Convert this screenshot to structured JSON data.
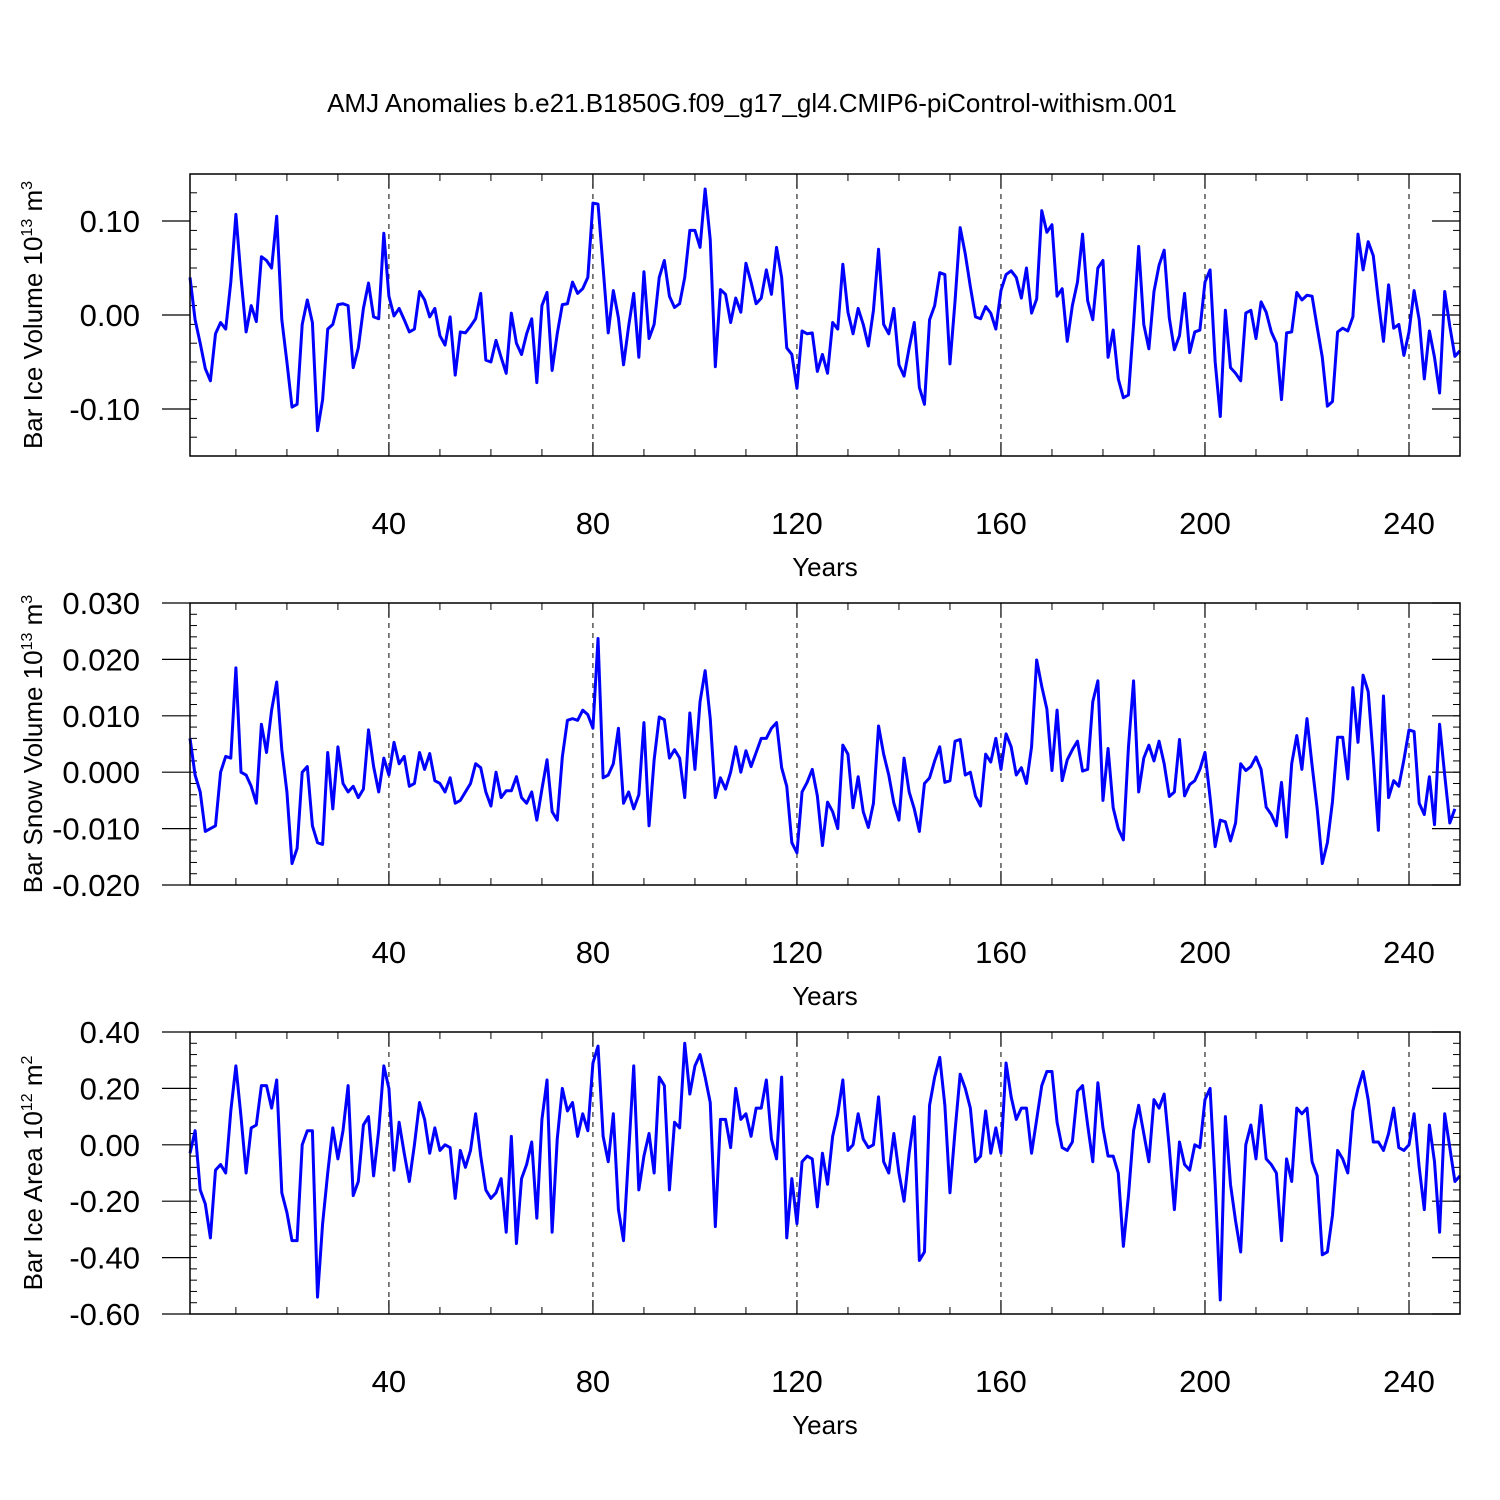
{
  "title": "AMJ Anomalies b.e21.B1850G.f09_g17_gl4.CMIP6-piControl-withism.001",
  "line_color": "#0000ff",
  "chart_data": [
    {
      "type": "line",
      "ylabel_main": "Bar Ice Volume 10",
      "ylabel_exp": "13",
      "ylabel_unit": " m",
      "ylabel_unit_exp": "3",
      "xlabel": "Years",
      "xlim": [
        1,
        250
      ],
      "ylim": [
        -0.15,
        0.15
      ],
      "x_ticks": [
        40,
        80,
        120,
        160,
        200,
        240
      ],
      "x_tick_labels": [
        "40",
        "80",
        "120",
        "160",
        "200",
        "240"
      ],
      "y_ticks": [
        -0.1,
        0.0,
        0.1
      ],
      "y_tick_labels": [
        "-0.10",
        "0.00",
        "0.10"
      ],
      "grid": "dashed vertical at major x ticks",
      "series": [
        {
          "values": [
            0.04,
            -0.005,
            -0.03,
            -0.057,
            -0.07,
            -0.02,
            -0.008,
            -0.015,
            0.035,
            0.107,
            0.04,
            -0.018,
            0.01,
            -0.007,
            0.062,
            0.058,
            0.05,
            0.105,
            -0.005,
            -0.05,
            -0.098,
            -0.095,
            -0.01,
            0.016,
            -0.008,
            -0.123,
            -0.09,
            -0.015,
            -0.01,
            0.011,
            0.012,
            0.01,
            -0.056,
            -0.035,
            0.007,
            0.034,
            -0.002,
            -0.004,
            0.087,
            0.02,
            -0.001,
            0.007,
            -0.005,
            -0.018,
            -0.015,
            0.025,
            0.016,
            -0.002,
            0.007,
            -0.022,
            -0.032,
            -0.002,
            -0.064,
            -0.018,
            -0.019,
            -0.012,
            -0.004,
            0.023,
            -0.048,
            -0.05,
            -0.027,
            -0.045,
            -0.062,
            0.002,
            -0.03,
            -0.042,
            -0.02,
            -0.004,
            -0.072,
            0.01,
            0.024,
            -0.059,
            -0.02,
            0.011,
            0.012,
            0.035,
            0.023,
            0.028,
            0.04,
            0.119,
            0.118,
            0.05,
            -0.019,
            0.026,
            -0.003,
            -0.053,
            -0.012,
            0.023,
            -0.045,
            0.046,
            -0.025,
            -0.01,
            0.04,
            0.058,
            0.02,
            0.008,
            0.012,
            0.04,
            0.09,
            0.09,
            0.072,
            0.134,
            0.08,
            -0.055,
            0.027,
            0.022,
            -0.008,
            0.018,
            0.003,
            0.055,
            0.035,
            0.012,
            0.018,
            0.048,
            0.022,
            0.072,
            0.04,
            -0.035,
            -0.042,
            -0.078,
            -0.017,
            -0.02,
            -0.019,
            -0.06,
            -0.042,
            -0.062,
            -0.008,
            -0.015,
            0.054,
            0.003,
            -0.02,
            0.007,
            -0.01,
            -0.033,
            0.005,
            0.07,
            -0.01,
            -0.02,
            0.007,
            -0.053,
            -0.065,
            -0.035,
            -0.008,
            -0.077,
            -0.095,
            -0.005,
            0.01,
            0.045,
            0.043,
            -0.052,
            0.015,
            0.093,
            0.065,
            0.03,
            -0.002,
            -0.004,
            0.009,
            0.002,
            -0.015,
            0.026,
            0.043,
            0.047,
            0.04,
            0.018,
            0.05,
            0.002,
            0.017,
            0.111,
            0.088,
            0.096,
            0.02,
            0.028,
            -0.028,
            0.01,
            0.035,
            0.086,
            0.015,
            -0.005,
            0.05,
            0.058,
            -0.045,
            -0.016,
            -0.068,
            -0.088,
            -0.085,
            -0.01,
            0.073,
            -0.01,
            -0.036,
            0.025,
            0.053,
            0.069,
            -0.003,
            -0.037,
            -0.022,
            0.023,
            -0.04,
            -0.018,
            -0.016,
            0.035,
            0.048,
            -0.05,
            -0.108,
            0.005,
            -0.056,
            -0.062,
            -0.07,
            0.002,
            0.005,
            -0.025,
            0.014,
            0.003,
            -0.018,
            -0.03,
            -0.09,
            -0.019,
            -0.018,
            0.024,
            0.016,
            0.021,
            0.02,
            -0.013,
            -0.045,
            -0.097,
            -0.092,
            -0.018,
            -0.014,
            -0.017,
            -0.002,
            0.086,
            0.048,
            0.078,
            0.063,
            0.015,
            -0.028,
            0.032,
            -0.014,
            -0.01,
            -0.043,
            -0.018,
            0.026,
            -0.005,
            -0.068,
            -0.017,
            -0.045,
            -0.083,
            0.025,
            -0.012,
            -0.044,
            -0.038
          ]
        }
      ]
    },
    {
      "type": "line",
      "ylabel_main": "Bar Snow Volume 10",
      "ylabel_exp": "13",
      "ylabel_unit": " m",
      "ylabel_unit_exp": "3",
      "xlabel": "Years",
      "xlim": [
        1,
        250
      ],
      "ylim": [
        -0.02,
        0.03
      ],
      "x_ticks": [
        40,
        80,
        120,
        160,
        200,
        240
      ],
      "x_tick_labels": [
        "40",
        "80",
        "120",
        "160",
        "200",
        "240"
      ],
      "y_ticks": [
        -0.02,
        -0.01,
        0.0,
        0.01,
        0.02,
        0.03
      ],
      "y_tick_labels": [
        "-0.020",
        "-0.010",
        "0.000",
        "0.010",
        "0.020",
        "0.030"
      ],
      "grid": "dashed vertical at major x ticks",
      "series": [
        {
          "values": [
            0.006,
            -0.0005,
            -0.0035,
            -0.0105,
            -0.01,
            -0.0095,
            0.0,
            0.0028,
            0.0025,
            0.0185,
            0.0,
            -0.0005,
            -0.0025,
            -0.0055,
            0.0085,
            0.0035,
            0.011,
            0.016,
            0.004,
            -0.0035,
            -0.0162,
            -0.0135,
            0.0,
            0.001,
            -0.0095,
            -0.0125,
            -0.0128,
            0.0035,
            -0.0065,
            0.0045,
            -0.002,
            -0.0035,
            -0.0025,
            -0.0045,
            -0.003,
            0.0075,
            0.001,
            -0.0035,
            0.0025,
            -0.0005,
            0.0053,
            0.0015,
            0.0028,
            -0.0025,
            -0.002,
            0.0035,
            0.0005,
            0.0033,
            -0.0015,
            -0.002,
            -0.0035,
            -0.001,
            -0.0055,
            -0.005,
            -0.0035,
            -0.002,
            0.0015,
            0.0008,
            -0.0035,
            -0.006,
            0.0,
            -0.0045,
            -0.0033,
            -0.0033,
            -0.0008,
            -0.0045,
            -0.0055,
            -0.0035,
            -0.0085,
            -0.003,
            0.0022,
            -0.007,
            -0.0085,
            0.0027,
            0.0092,
            0.0095,
            0.0092,
            0.011,
            0.0102,
            0.0078,
            0.0237,
            -0.001,
            -0.0005,
            0.0015,
            0.0078,
            -0.0055,
            -0.0035,
            -0.0065,
            -0.004,
            0.0088,
            -0.0095,
            0.0022,
            0.0098,
            0.0093,
            0.0025,
            0.004,
            0.0025,
            -0.0045,
            0.0105,
            0.0005,
            0.0125,
            0.018,
            0.0095,
            -0.0045,
            -0.001,
            -0.003,
            0.0,
            0.0045,
            0.0,
            0.0038,
            0.001,
            0.0035,
            0.006,
            0.006,
            0.0078,
            0.0088,
            0.0008,
            -0.0025,
            -0.0125,
            -0.0143,
            -0.0035,
            -0.0018,
            0.0005,
            -0.0042,
            -0.013,
            -0.0053,
            -0.007,
            -0.01,
            0.0048,
            0.0032,
            -0.0063,
            -0.0008,
            -0.007,
            -0.0098,
            -0.0055,
            0.0082,
            0.0032,
            -0.0005,
            -0.0055,
            -0.0085,
            0.0025,
            -0.0035,
            -0.0065,
            -0.0105,
            -0.002,
            -0.001,
            0.002,
            0.0045,
            -0.0018,
            -0.0015,
            0.0055,
            0.0058,
            -0.0005,
            0.0,
            -0.0042,
            -0.006,
            0.0032,
            0.0018,
            0.006,
            0.0005,
            0.0068,
            0.0045,
            -0.0005,
            0.0008,
            -0.002,
            0.0045,
            0.0199,
            0.0152,
            0.0112,
            0.0003,
            0.011,
            -0.0015,
            0.0022,
            0.004,
            0.0055,
            0.0002,
            0.0005,
            0.0125,
            0.0162,
            -0.005,
            0.0042,
            -0.0063,
            -0.01,
            -0.012,
            0.0045,
            0.0162,
            -0.0035,
            0.0025,
            0.0048,
            0.002,
            0.0055,
            0.0015,
            -0.0043,
            -0.0035,
            0.0058,
            -0.0042,
            -0.0022,
            -0.0015,
            0.0005,
            0.0035,
            -0.0045,
            -0.0132,
            -0.0085,
            -0.0088,
            -0.0122,
            -0.009,
            0.0015,
            0.0003,
            0.001,
            0.0027,
            0.0005,
            -0.0062,
            -0.0075,
            -0.0095,
            -0.0018,
            -0.0115,
            0.0015,
            0.0065,
            0.0005,
            0.0095,
            0.0012,
            -0.0065,
            -0.0162,
            -0.0125,
            -0.0052,
            0.0062,
            0.0062,
            -0.0012,
            0.015,
            0.0053,
            0.0172,
            0.0143,
            0.0025,
            -0.0103,
            0.0135,
            -0.0045,
            -0.0015,
            -0.0025,
            0.0022,
            0.0075,
            0.0072,
            -0.0055,
            -0.0075,
            -0.0008,
            -0.0093,
            0.0085,
            -0.0005,
            -0.009,
            -0.0065
          ]
        }
      ]
    },
    {
      "type": "line",
      "ylabel_main": "Bar Ice Area 10",
      "ylabel_exp": "12",
      "ylabel_unit": " m",
      "ylabel_unit_exp": "2",
      "xlabel": "Years",
      "xlim": [
        1,
        250
      ],
      "ylim": [
        -0.6,
        0.4
      ],
      "x_ticks": [
        40,
        80,
        120,
        160,
        200,
        240
      ],
      "x_tick_labels": [
        "40",
        "80",
        "120",
        "160",
        "200",
        "240"
      ],
      "y_ticks": [
        -0.6,
        -0.4,
        -0.2,
        0.0,
        0.2,
        0.4
      ],
      "y_tick_labels": [
        "-0.60",
        "-0.40",
        "-0.20",
        "0.00",
        "0.20",
        "0.40"
      ],
      "grid": "dashed vertical at major x ticks",
      "series": [
        {
          "values": [
            -0.03,
            0.05,
            -0.16,
            -0.21,
            -0.33,
            -0.09,
            -0.07,
            -0.1,
            0.12,
            0.28,
            0.1,
            -0.1,
            0.06,
            0.07,
            0.21,
            0.21,
            0.13,
            0.23,
            -0.17,
            -0.24,
            -0.34,
            -0.34,
            0.0,
            0.05,
            0.05,
            -0.54,
            -0.28,
            -0.1,
            0.06,
            -0.05,
            0.05,
            0.21,
            -0.18,
            -0.13,
            0.07,
            0.1,
            -0.11,
            0.05,
            0.28,
            0.2,
            -0.09,
            0.08,
            -0.03,
            -0.13,
            0.0,
            0.15,
            0.09,
            -0.03,
            0.06,
            -0.02,
            0.0,
            -0.01,
            -0.19,
            -0.02,
            -0.08,
            -0.02,
            0.11,
            -0.04,
            -0.16,
            -0.19,
            -0.17,
            -0.12,
            -0.31,
            0.03,
            -0.35,
            -0.12,
            -0.07,
            0.01,
            -0.26,
            0.09,
            0.23,
            -0.31,
            0.02,
            0.2,
            0.12,
            0.15,
            0.03,
            0.11,
            0.05,
            0.29,
            0.35,
            0.03,
            -0.06,
            0.11,
            -0.23,
            -0.34,
            -0.03,
            0.28,
            -0.16,
            -0.04,
            0.04,
            -0.1,
            0.24,
            0.21,
            -0.16,
            0.08,
            0.06,
            0.36,
            0.18,
            0.28,
            0.32,
            0.24,
            0.15,
            -0.29,
            0.09,
            0.09,
            -0.01,
            0.2,
            0.09,
            0.11,
            0.03,
            0.13,
            0.13,
            0.23,
            0.02,
            -0.05,
            0.24,
            -0.33,
            -0.12,
            -0.28,
            -0.06,
            -0.04,
            -0.05,
            -0.22,
            -0.03,
            -0.14,
            0.03,
            0.11,
            0.23,
            -0.02,
            0.0,
            0.11,
            0.02,
            -0.01,
            0.0,
            0.17,
            -0.06,
            -0.1,
            0.04,
            -0.1,
            -0.2,
            -0.03,
            0.1,
            -0.41,
            -0.38,
            0.14,
            0.24,
            0.31,
            0.14,
            -0.17,
            0.05,
            0.25,
            0.2,
            0.13,
            -0.06,
            -0.04,
            0.12,
            -0.03,
            0.06,
            -0.03,
            0.29,
            0.17,
            0.09,
            0.13,
            0.13,
            -0.03,
            0.09,
            0.21,
            0.26,
            0.26,
            0.08,
            -0.01,
            -0.02,
            0.01,
            0.19,
            0.21,
            0.07,
            -0.06,
            0.22,
            0.06,
            -0.04,
            -0.04,
            -0.1,
            -0.36,
            -0.18,
            0.05,
            0.14,
            0.04,
            -0.06,
            0.16,
            0.13,
            0.18,
            -0.01,
            -0.23,
            0.01,
            -0.07,
            -0.09,
            0.0,
            -0.01,
            0.16,
            0.2,
            -0.14,
            -0.55,
            0.1,
            -0.14,
            -0.27,
            -0.38,
            0.0,
            0.07,
            -0.05,
            0.14,
            -0.05,
            -0.07,
            -0.1,
            -0.34,
            -0.05,
            -0.13,
            0.13,
            0.11,
            0.13,
            -0.06,
            -0.11,
            -0.39,
            -0.38,
            -0.25,
            -0.02,
            -0.05,
            -0.1,
            0.12,
            0.2,
            0.26,
            0.16,
            0.01,
            0.01,
            -0.02,
            0.04,
            0.13,
            -0.01,
            -0.02,
            0.0,
            0.11,
            -0.08,
            -0.23,
            0.07,
            -0.06,
            -0.31,
            0.11,
            -0.01,
            -0.13,
            -0.11
          ]
        }
      ]
    }
  ]
}
